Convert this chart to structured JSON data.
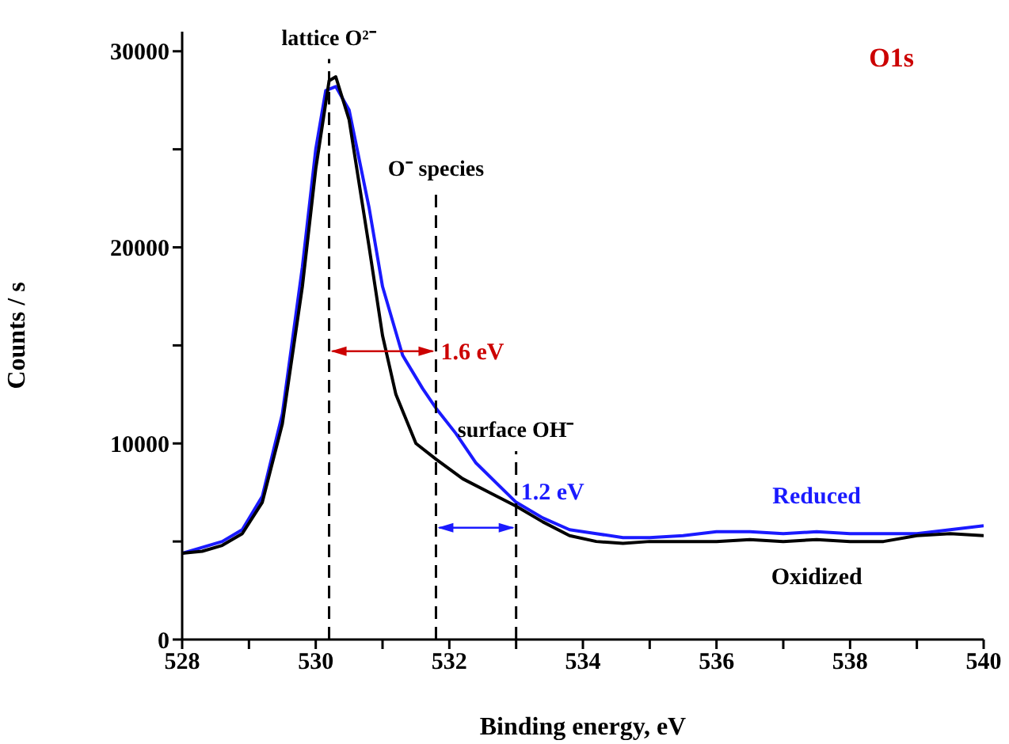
{
  "chart_data": {
    "type": "line",
    "xlabel": "Binding energy, eV",
    "ylabel": "Counts / s",
    "xlim": [
      528,
      540
    ],
    "xticks": [
      528,
      {
        "value": 529,
        "label": null
      },
      530,
      {
        "value": 531,
        "label": null
      },
      532,
      {
        "value": 533,
        "label": null
      },
      534,
      {
        "value": 535,
        "label": null
      },
      536,
      {
        "value": 537,
        "label": null
      },
      538,
      {
        "value": 539,
        "label": null
      },
      540
    ],
    "ylim": [
      0,
      31000
    ],
    "yticks": [
      0,
      {
        "value": 5000,
        "label": null
      },
      10000,
      {
        "value": 15000,
        "label": null
      },
      20000,
      {
        "value": 25000,
        "label": null
      },
      30000
    ],
    "marker": "none",
    "line_style": "solid",
    "series": [
      {
        "name": "Reduced",
        "color": "#1a1aff",
        "x": [
          528,
          528.3,
          528.6,
          528.9,
          529.2,
          529.5,
          529.8,
          530,
          530.15,
          530.3,
          530.5,
          530.8,
          531,
          531.3,
          531.6,
          531.8,
          532.1,
          532.4,
          532.7,
          533,
          533.4,
          533.8,
          534.2,
          534.6,
          535,
          535.5,
          536,
          536.5,
          537,
          537.5,
          538,
          538.5,
          539,
          539.5,
          540
        ],
        "values": [
          4400,
          4700,
          5000,
          5600,
          7300,
          11500,
          19000,
          25000,
          28000,
          28200,
          27000,
          22000,
          18000,
          14500,
          12800,
          11800,
          10500,
          9000,
          8000,
          7000,
          6200,
          5600,
          5400,
          5200,
          5200,
          5300,
          5500,
          5500,
          5400,
          5500,
          5400,
          5400,
          5400,
          5600,
          5800
        ]
      },
      {
        "name": "Oxidized",
        "color": "#000000",
        "x": [
          528,
          528.3,
          528.6,
          528.9,
          529.2,
          529.5,
          529.8,
          530,
          530.2,
          530.3,
          530.5,
          530.8,
          531,
          531.2,
          531.5,
          531.8,
          532.2,
          532.6,
          533,
          533.4,
          533.8,
          534.2,
          534.6,
          535,
          535.5,
          536,
          536.5,
          537,
          537.5,
          538,
          538.5,
          539,
          539.5,
          540
        ],
        "values": [
          4400,
          4500,
          4800,
          5400,
          7000,
          11000,
          18000,
          24000,
          28500,
          28700,
          26500,
          20000,
          15500,
          12500,
          10000,
          9200,
          8200,
          7500,
          6800,
          6000,
          5300,
          5000,
          4900,
          5000,
          5000,
          5000,
          5100,
          5000,
          5100,
          5000,
          5000,
          5300,
          5400,
          5300
        ]
      }
    ],
    "ref_lines": [
      {
        "axis": "x",
        "value": 530.2,
        "label": "lattice O²⁻",
        "line_style": "dashed",
        "color": "#000000"
      },
      {
        "axis": "x",
        "value": 531.8,
        "label": "O⁻ species",
        "line_style": "dashed",
        "color": "#000000"
      },
      {
        "axis": "x",
        "value": 533,
        "label": "surface OH⁻",
        "line_style": "dashed",
        "color": "#000000"
      }
    ],
    "annotations": [
      "O1s",
      {
        "text": "1.6 eV",
        "x": 531.8,
        "y": 14700
      },
      {
        "text": "1.2 eV",
        "x": 533,
        "y": 5700
      }
    ]
  }
}
